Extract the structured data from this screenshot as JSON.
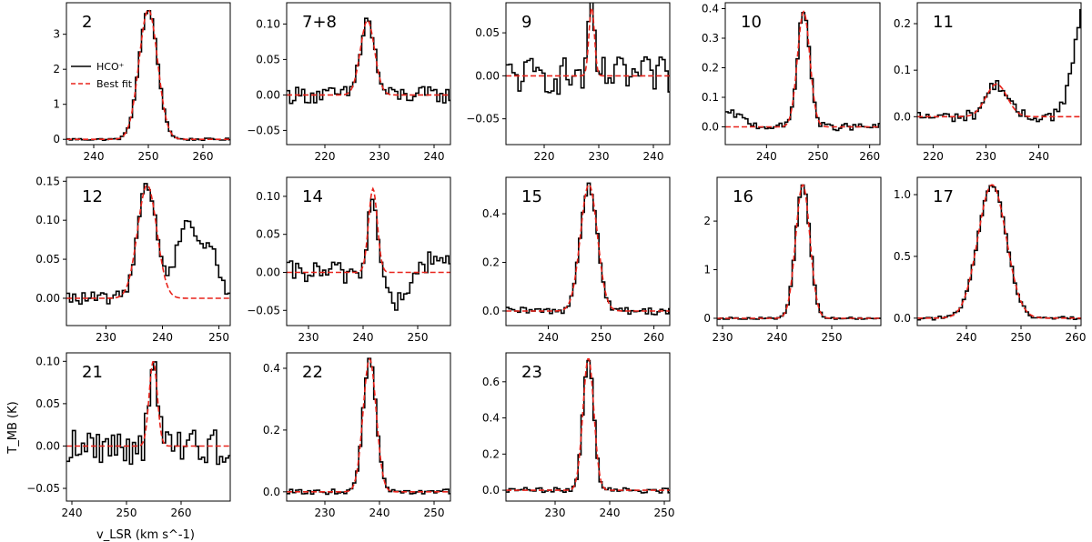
{
  "chart_data": {
    "type": "line",
    "ylabel": "T_MB (K)",
    "xlabel": "v_LSR (km s^-1)",
    "legend": {
      "placement": "inside panel 2, middle-left",
      "entries": [
        {
          "label": "HCO⁺",
          "color": "#000000",
          "style": "solid-step"
        },
        {
          "label": "Best fit",
          "color": "#e8231b",
          "style": "dashed"
        }
      ]
    },
    "panels": [
      {
        "id": "2",
        "xlim": [
          235,
          265
        ],
        "ylim": [
          -0.15,
          3.9
        ],
        "xticks": [
          240,
          250,
          260
        ],
        "yticks": [
          0,
          1,
          2,
          3
        ],
        "ytick_labels": [
          "0",
          "1",
          "2",
          "3"
        ],
        "gauss": {
          "amp": 3.7,
          "center": 250.0,
          "sigma": 1.7
        },
        "noise": 0.03,
        "extra": []
      },
      {
        "id": "7+8",
        "xlim": [
          213,
          243
        ],
        "ylim": [
          -0.07,
          0.13
        ],
        "xticks": [
          220,
          230,
          240
        ],
        "yticks": [
          -0.05,
          0.0,
          0.05,
          0.1
        ],
        "ytick_labels": [
          "−0.05",
          "0.00",
          "0.05",
          "0.10"
        ],
        "gauss": {
          "amp": 0.105,
          "center": 227.8,
          "sigma": 1.3
        },
        "noise": 0.012,
        "extra": []
      },
      {
        "id": "9",
        "xlim": [
          213,
          243
        ],
        "ylim": [
          -0.08,
          0.085
        ],
        "xticks": [
          220,
          230,
          240
        ],
        "yticks": [
          -0.05,
          0.0,
          0.05
        ],
        "ytick_labels": [
          "−0.05",
          "0.00",
          "0.05"
        ],
        "gauss": {
          "amp": 0.08,
          "center": 228.7,
          "sigma": 0.5
        },
        "noise": 0.022,
        "extra": []
      },
      {
        "id": "10",
        "xlim": [
          232,
          262
        ],
        "ylim": [
          -0.06,
          0.42
        ],
        "xticks": [
          240,
          250,
          260
        ],
        "yticks": [
          0.0,
          0.1,
          0.2,
          0.3,
          0.4
        ],
        "ytick_labels": [
          "0.0",
          "0.1",
          "0.2",
          "0.3",
          "0.4"
        ],
        "gauss": {
          "amp": 0.39,
          "center": 247.2,
          "sigma": 1.2
        },
        "noise": 0.012,
        "extra": [
          {
            "amp": 0.045,
            "center": 233,
            "sigma": 2.5
          }
        ]
      },
      {
        "id": "11",
        "xlim": [
          217,
          248
        ],
        "ylim": [
          -0.06,
          0.245
        ],
        "xticks": [
          220,
          230,
          240
        ],
        "yticks": [
          0.0,
          0.1,
          0.2
        ],
        "ytick_labels": [
          "0.0",
          "0.1",
          "0.2"
        ],
        "gauss": {
          "amp": 0.07,
          "center": 232.0,
          "sigma": 2.0
        },
        "noise": 0.012,
        "extra": [
          {
            "amp": 0.24,
            "center": 249,
            "sigma": 2.2
          }
        ]
      },
      {
        "id": "12",
        "xlim": [
          223,
          252
        ],
        "ylim": [
          -0.035,
          0.155
        ],
        "xticks": [
          230,
          240,
          250
        ],
        "yticks": [
          0.0,
          0.05,
          0.1,
          0.15
        ],
        "ytick_labels": [
          "0.00",
          "0.05",
          "0.10",
          "0.15"
        ],
        "gauss": {
          "amp": 0.145,
          "center": 237.3,
          "sigma": 1.7
        },
        "noise": 0.008,
        "extra": [
          {
            "amp": 0.1,
            "center": 244.3,
            "sigma": 1.8
          },
          {
            "amp": 0.06,
            "center": 248.5,
            "sigma": 1.5
          }
        ]
      },
      {
        "id": "14",
        "xlim": [
          226,
          256
        ],
        "ylim": [
          -0.07,
          0.125
        ],
        "xticks": [
          230,
          240,
          250
        ],
        "yticks": [
          -0.05,
          0.0,
          0.05,
          0.1
        ],
        "ytick_labels": [
          "−0.05",
          "0.00",
          "0.05",
          "0.10"
        ],
        "gauss": {
          "amp": 0.11,
          "center": 241.8,
          "sigma": 0.8
        },
        "noise": 0.015,
        "extra": [
          {
            "amp": -0.04,
            "center": 246.5,
            "sigma": 2.0
          },
          {
            "amp": 0.02,
            "center": 253,
            "sigma": 2.0
          }
        ]
      },
      {
        "id": "15",
        "xlim": [
          232,
          263
        ],
        "ylim": [
          -0.06,
          0.55
        ],
        "xticks": [
          240,
          250,
          260
        ],
        "yticks": [
          0.0,
          0.2,
          0.4
        ],
        "ytick_labels": [
          "0.0",
          "0.2",
          "0.4"
        ],
        "gauss": {
          "amp": 0.52,
          "center": 247.7,
          "sigma": 1.6
        },
        "noise": 0.015,
        "extra": []
      },
      {
        "id": "16",
        "xlim": [
          229,
          259
        ],
        "ylim": [
          -0.15,
          2.9
        ],
        "xticks": [
          230,
          240,
          250
        ],
        "yticks": [
          0,
          1,
          2
        ],
        "ytick_labels": [
          "0",
          "1",
          "2"
        ],
        "gauss": {
          "amp": 2.75,
          "center": 244.7,
          "sigma": 1.3
        },
        "noise": 0.02,
        "extra": []
      },
      {
        "id": "17",
        "xlim": [
          231,
          261
        ],
        "ylim": [
          -0.06,
          1.14
        ],
        "xticks": [
          240,
          250,
          260
        ],
        "yticks": [
          0.0,
          0.5,
          1.0
        ],
        "ytick_labels": [
          "0.0",
          "0.5",
          "1.0"
        ],
        "gauss": {
          "amp": 1.08,
          "center": 244.7,
          "sigma": 2.6
        },
        "noise": 0.015,
        "extra": []
      },
      {
        "id": "21",
        "xlim": [
          239,
          269
        ],
        "ylim": [
          -0.065,
          0.11
        ],
        "xticks": [
          240,
          250,
          260
        ],
        "yticks": [
          -0.05,
          0.0,
          0.05,
          0.1
        ],
        "ytick_labels": [
          "−0.05",
          "0.00",
          "0.05",
          "0.10"
        ],
        "gauss": {
          "amp": 0.1,
          "center": 254.9,
          "sigma": 0.75
        },
        "noise": 0.022,
        "extra": []
      },
      {
        "id": "22",
        "xlim": [
          223,
          253
        ],
        "ylim": [
          -0.03,
          0.45
        ],
        "xticks": [
          230,
          240,
          250
        ],
        "yticks": [
          0.0,
          0.2,
          0.4
        ],
        "ytick_labels": [
          "0.0",
          "0.2",
          "0.4"
        ],
        "gauss": {
          "amp": 0.43,
          "center": 238.2,
          "sigma": 1.2
        },
        "noise": 0.008,
        "extra": []
      },
      {
        "id": "23",
        "xlim": [
          221,
          251
        ],
        "ylim": [
          -0.06,
          0.76
        ],
        "xticks": [
          230,
          240,
          250
        ],
        "yticks": [
          0.0,
          0.2,
          0.4,
          0.6
        ],
        "ytick_labels": [
          "0.0",
          "0.2",
          "0.4",
          "0.6"
        ],
        "gauss": {
          "amp": 0.73,
          "center": 236.1,
          "sigma": 1.0
        },
        "noise": 0.015,
        "extra": []
      }
    ]
  }
}
